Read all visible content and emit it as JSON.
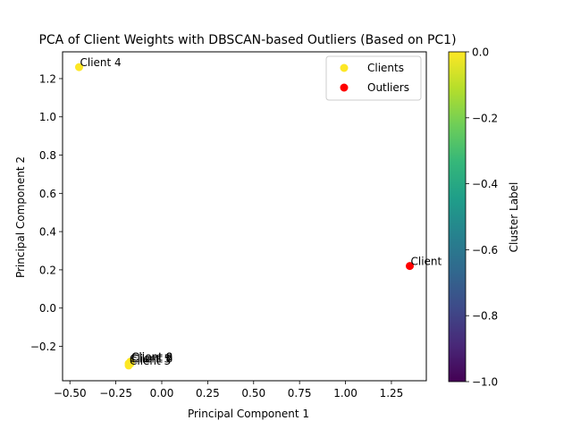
{
  "chart_data": {
    "type": "scatter",
    "title": "PCA of Client Weights with DBSCAN-based Outliers (Based on PC1)",
    "xlabel": "Principal Component 1",
    "ylabel": "Principal Component 2",
    "xlim": [
      -0.54,
      1.44
    ],
    "ylim": [
      -0.38,
      1.34
    ],
    "xticks": [
      -0.5,
      -0.25,
      0.0,
      0.25,
      0.5,
      0.75,
      1.0,
      1.25
    ],
    "xtick_labels": [
      "−0.50",
      "−0.25",
      "0.00",
      "0.25",
      "0.50",
      "0.75",
      "1.00",
      "1.25"
    ],
    "yticks": [
      -0.2,
      0.0,
      0.2,
      0.4,
      0.6,
      0.8,
      1.0,
      1.2
    ],
    "ytick_labels": [
      "−0.2",
      "0.0",
      "0.2",
      "0.4",
      "0.6",
      "0.8",
      "1.0",
      "1.2"
    ],
    "grid": false,
    "legend_position": "top-right",
    "series": [
      {
        "name": "Clients",
        "color": "#fde725",
        "points": [
          {
            "x": -0.45,
            "y": 1.26,
            "label": "Client 4"
          },
          {
            "x": -0.18,
            "y": -0.3,
            "label": "Client 3"
          },
          {
            "x": -0.18,
            "y": -0.29,
            "label": "Client 5"
          },
          {
            "x": -0.17,
            "y": -0.29,
            "label": "Client 6"
          },
          {
            "x": -0.17,
            "y": -0.28,
            "label": "Client 8"
          },
          {
            "x": -0.17,
            "y": -0.28,
            "label": "Client 9"
          }
        ]
      },
      {
        "name": "Outliers",
        "color": "#ff0000",
        "points": [
          {
            "x": 1.35,
            "y": 0.22,
            "label": "Client"
          }
        ]
      }
    ],
    "colorbar": {
      "label": "Cluster Label",
      "colormap": "viridis",
      "range": [
        -1.0,
        0.0
      ],
      "ticks": [
        -1.0,
        -0.8,
        -0.6,
        -0.4,
        -0.2,
        0.0
      ],
      "tick_labels": [
        "−1.0",
        "−0.8",
        "−0.6",
        "−0.4",
        "−0.2",
        "0.0"
      ],
      "stops": [
        "#440154",
        "#482878",
        "#3e4a89",
        "#31688e",
        "#26828e",
        "#1f9e89",
        "#35b779",
        "#6ece58",
        "#b5de2b",
        "#fde725"
      ]
    }
  }
}
